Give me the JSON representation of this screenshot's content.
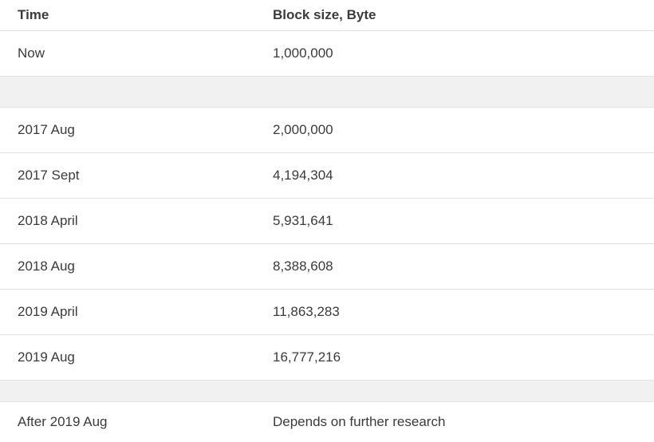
{
  "table": {
    "columns": {
      "time": "Time",
      "size": "Block size, Byte"
    },
    "rows": [
      {
        "time": "Now",
        "size": "1,000,000"
      },
      {
        "spacer": true
      },
      {
        "time": "2017 Aug",
        "size": "2,000,000"
      },
      {
        "time": "2017 Sept",
        "size": "4,194,304"
      },
      {
        "time": "2018 April",
        "size": "5,931,641"
      },
      {
        "time": "2018 Aug",
        "size": "8,388,608"
      },
      {
        "time": "2019 April",
        "size": "11,863,283"
      },
      {
        "time": "2019 Aug",
        "size": "16,777,216"
      },
      {
        "spacer": true
      },
      {
        "time": "After 2019 Aug",
        "size": "Depends on further research"
      }
    ]
  },
  "colors": {
    "text": "#3b3b3b",
    "row_border": "#e2e2e2",
    "spacer_background": "#f1f1f1",
    "page_background": "#ffffff"
  }
}
